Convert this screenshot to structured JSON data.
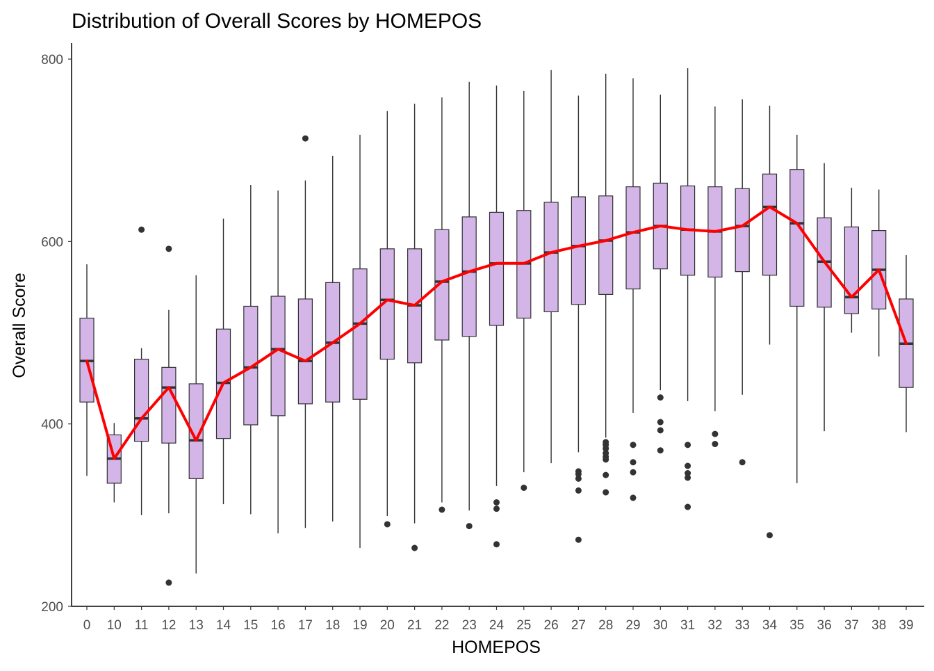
{
  "chart_data": {
    "type": "boxplot",
    "title": "Distribution of Overall Scores by HOMEPOS",
    "xlabel": "HOMEPOS",
    "ylabel": "Overall Score",
    "ylim": [
      200,
      800
    ],
    "yticks": [
      200,
      400,
      600,
      800
    ],
    "grid": false,
    "legend": "none",
    "colors": {
      "box_fill": "#d3b5e8",
      "box_stroke": "#333333",
      "median_stroke": "#333333",
      "line": "#ff0000",
      "outlier": "#333333",
      "axis": "#000000",
      "tick_label": "#4d4d4d"
    },
    "categories": [
      "0",
      "10",
      "11",
      "12",
      "13",
      "14",
      "15",
      "16",
      "17",
      "18",
      "19",
      "20",
      "21",
      "22",
      "23",
      "24",
      "25",
      "26",
      "27",
      "28",
      "29",
      "30",
      "31",
      "32",
      "33",
      "34",
      "35",
      "36",
      "37",
      "38",
      "39"
    ],
    "boxes": [
      {
        "category": "0",
        "whisker_low": 343,
        "q1": 424,
        "median": 469,
        "q3": 516,
        "whisker_high": 575,
        "outliers": []
      },
      {
        "category": "10",
        "whisker_low": 314,
        "q1": 335,
        "median": 362,
        "q3": 388,
        "whisker_high": 401,
        "outliers": []
      },
      {
        "category": "11",
        "whisker_low": 300,
        "q1": 381,
        "median": 406,
        "q3": 471,
        "whisker_high": 483,
        "outliers": [
          613
        ]
      },
      {
        "category": "12",
        "whisker_low": 302,
        "q1": 379,
        "median": 440,
        "q3": 462,
        "whisker_high": 525,
        "outliers": [
          592,
          226
        ]
      },
      {
        "category": "13",
        "whisker_low": 236,
        "q1": 340,
        "median": 382,
        "q3": 444,
        "whisker_high": 563,
        "outliers": []
      },
      {
        "category": "14",
        "whisker_low": 312,
        "q1": 384,
        "median": 445,
        "q3": 504,
        "whisker_high": 625,
        "outliers": []
      },
      {
        "category": "15",
        "whisker_low": 301,
        "q1": 399,
        "median": 462,
        "q3": 529,
        "whisker_high": 662,
        "outliers": []
      },
      {
        "category": "16",
        "whisker_low": 280,
        "q1": 409,
        "median": 482,
        "q3": 540,
        "whisker_high": 656,
        "outliers": []
      },
      {
        "category": "17",
        "whisker_low": 286,
        "q1": 422,
        "median": 469,
        "q3": 537,
        "whisker_high": 667,
        "outliers": [
          713
        ]
      },
      {
        "category": "18",
        "whisker_low": 293,
        "q1": 424,
        "median": 489,
        "q3": 555,
        "whisker_high": 694,
        "outliers": []
      },
      {
        "category": "19",
        "whisker_low": 264,
        "q1": 427,
        "median": 510,
        "q3": 570,
        "whisker_high": 717,
        "outliers": []
      },
      {
        "category": "20",
        "whisker_low": 299,
        "q1": 471,
        "median": 536,
        "q3": 592,
        "whisker_high": 743,
        "outliers": [
          290
        ]
      },
      {
        "category": "21",
        "whisker_low": 291,
        "q1": 467,
        "median": 530,
        "q3": 592,
        "whisker_high": 751,
        "outliers": [
          264
        ]
      },
      {
        "category": "22",
        "whisker_low": 314,
        "q1": 492,
        "median": 556,
        "q3": 613,
        "whisker_high": 758,
        "outliers": [
          306
        ]
      },
      {
        "category": "23",
        "whisker_low": 305,
        "q1": 496,
        "median": 567,
        "q3": 627,
        "whisker_high": 775,
        "outliers": [
          288
        ]
      },
      {
        "category": "24",
        "whisker_low": 332,
        "q1": 508,
        "median": 576,
        "q3": 632,
        "whisker_high": 771,
        "outliers": [
          314,
          307,
          268
        ]
      },
      {
        "category": "25",
        "whisker_low": 347,
        "q1": 516,
        "median": 576,
        "q3": 634,
        "whisker_high": 765,
        "outliers": [
          330
        ]
      },
      {
        "category": "26",
        "whisker_low": 357,
        "q1": 523,
        "median": 588,
        "q3": 643,
        "whisker_high": 788,
        "outliers": []
      },
      {
        "category": "27",
        "whisker_low": 369,
        "q1": 531,
        "median": 595,
        "q3": 649,
        "whisker_high": 760,
        "outliers": [
          348,
          345,
          340,
          327,
          273
        ]
      },
      {
        "category": "28",
        "whisker_low": 385,
        "q1": 542,
        "median": 601,
        "q3": 650,
        "whisker_high": 784,
        "outliers": [
          380,
          377,
          373,
          368,
          364,
          361,
          344,
          325
        ]
      },
      {
        "category": "29",
        "whisker_low": 412,
        "q1": 548,
        "median": 610,
        "q3": 660,
        "whisker_high": 779,
        "outliers": [
          377,
          358,
          347,
          319
        ]
      },
      {
        "category": "30",
        "whisker_low": 437,
        "q1": 570,
        "median": 617,
        "q3": 664,
        "whisker_high": 761,
        "outliers": [
          429,
          402,
          393,
          371
        ]
      },
      {
        "category": "31",
        "whisker_low": 425,
        "q1": 563,
        "median": 613,
        "q3": 661,
        "whisker_high": 790,
        "outliers": [
          377,
          354,
          346,
          341,
          309
        ]
      },
      {
        "category": "32",
        "whisker_low": 414,
        "q1": 561,
        "median": 611,
        "q3": 660,
        "whisker_high": 748,
        "outliers": [
          389,
          378
        ]
      },
      {
        "category": "33",
        "whisker_low": 432,
        "q1": 567,
        "median": 617,
        "q3": 658,
        "whisker_high": 756,
        "outliers": [
          358
        ]
      },
      {
        "category": "34",
        "whisker_low": 487,
        "q1": 563,
        "median": 638,
        "q3": 674,
        "whisker_high": 749,
        "outliers": [
          278
        ]
      },
      {
        "category": "35",
        "whisker_low": 335,
        "q1": 529,
        "median": 620,
        "q3": 679,
        "whisker_high": 717,
        "outliers": []
      },
      {
        "category": "36",
        "whisker_low": 392,
        "q1": 528,
        "median": 578,
        "q3": 626,
        "whisker_high": 686,
        "outliers": []
      },
      {
        "category": "37",
        "whisker_low": 500,
        "q1": 521,
        "median": 539,
        "q3": 616,
        "whisker_high": 659,
        "outliers": []
      },
      {
        "category": "38",
        "whisker_low": 474,
        "q1": 526,
        "median": 569,
        "q3": 612,
        "whisker_high": 657,
        "outliers": []
      },
      {
        "category": "39",
        "whisker_low": 391,
        "q1": 440,
        "median": 488,
        "q3": 537,
        "whisker_high": 585,
        "outliers": []
      }
    ],
    "series": [
      {
        "type": "line",
        "values": [
          469,
          362,
          406,
          440,
          382,
          445,
          462,
          482,
          469,
          489,
          510,
          536,
          530,
          556,
          567,
          576,
          576,
          588,
          595,
          601,
          610,
          617,
          613,
          611,
          617,
          638,
          620,
          578,
          539,
          569,
          488
        ]
      }
    ]
  }
}
